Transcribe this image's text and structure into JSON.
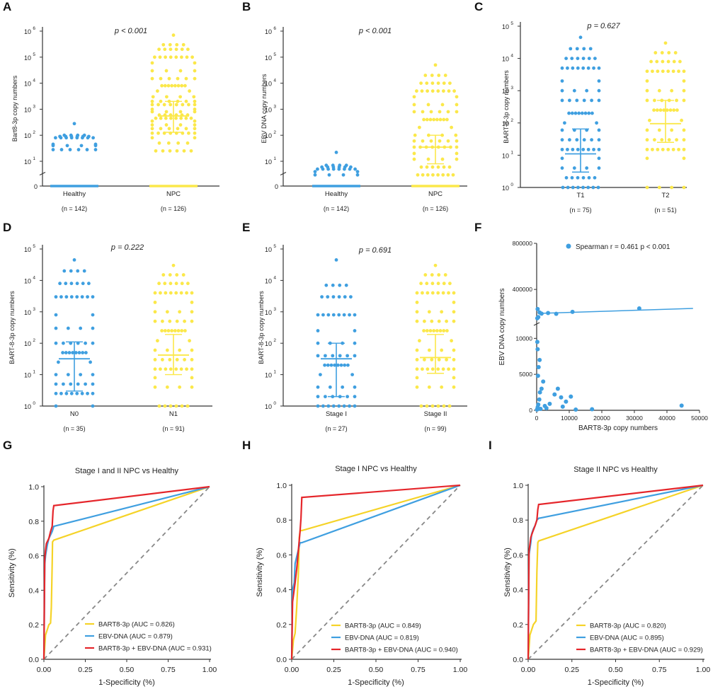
{
  "colors": {
    "blue": "#3f9fe0",
    "yellow": "#fbe84a",
    "red": "#e5262b",
    "roc_yellow": "#f5d328",
    "diag": "#888888",
    "axis": "#333333"
  },
  "chart_data": [
    {
      "panel": "A",
      "type": "scatter",
      "scale": "log",
      "ylabel": "Bart8-3p copy numbers",
      "ytick_exps": [
        1,
        2,
        3,
        4,
        5,
        6
      ],
      "ymax_exp": 6,
      "ymin_exp": 1,
      "zero_label": "0",
      "has_zero": true,
      "p_text": "p < 0.001",
      "groups": [
        {
          "name": "Healthy",
          "n": "(n = 142)",
          "color": "blue",
          "median": null,
          "q1": null,
          "q3": null,
          "values": [
            280,
            100,
            90,
            80,
            45,
            40,
            28,
            0
          ],
          "zero_count": 46
        },
        {
          "name": "NPC",
          "n": "(n = 126)",
          "color": "yellow",
          "median": 550,
          "q1": 130,
          "q3": 2000,
          "values": [
            700000,
            300000,
            200000,
            100000,
            60000,
            30000,
            15000,
            8000,
            5000,
            3000,
            2000,
            1500,
            1000,
            800,
            600,
            450,
            350,
            250,
            180,
            120,
            80,
            50,
            25
          ],
          "zero_count": 40
        }
      ]
    },
    {
      "panel": "B",
      "type": "scatter",
      "scale": "log",
      "ylabel": "EBV DNA copy numbers",
      "ytick_exps": [
        1,
        2,
        3,
        4,
        5,
        6
      ],
      "ymax_exp": 6,
      "ymin_exp": 1,
      "zero_label": "0",
      "has_zero": true,
      "p_text": "p < 0.001",
      "groups": [
        {
          "name": "Healthy",
          "n": "(n = 142)",
          "color": "blue",
          "median": null,
          "q1": null,
          "q3": null,
          "values": [
            22,
            7,
            6,
            5,
            4,
            3
          ],
          "zero_count": 46
        },
        {
          "name": "NPC",
          "n": "(n = 126)",
          "color": "yellow",
          "median": 35,
          "q1": 8,
          "q3": 100,
          "values": [
            50000,
            20000,
            10000,
            5000,
            3000,
            1500,
            800,
            400,
            200,
            100,
            60,
            35,
            20,
            12,
            6,
            3
          ],
          "zero_count": 40
        }
      ]
    },
    {
      "panel": "C",
      "type": "scatter",
      "scale": "log",
      "ylabel": "BART-8-3p copy numbers",
      "ytick_exps": [
        0,
        1,
        2,
        3,
        4,
        5
      ],
      "ymax_exp": 5,
      "ymin_exp": 0,
      "has_zero": false,
      "p_text": "p = 0.627",
      "groups": [
        {
          "name": "T1",
          "n": "(n = 75)",
          "color": "blue",
          "median": 11,
          "q1": 3,
          "q3": 65,
          "values": [
            45000,
            20000,
            10000,
            5000,
            2000,
            1000,
            500,
            200,
            100,
            60,
            30,
            15,
            8,
            4,
            2,
            1
          ],
          "zero_count": 0
        },
        {
          "name": "T2",
          "n": "(n = 51)",
          "color": "yellow",
          "median": 95,
          "q1": 25,
          "q3": 500,
          "values": [
            30000,
            15000,
            8000,
            4000,
            2000,
            1000,
            500,
            250,
            120,
            60,
            30,
            15,
            8,
            1
          ],
          "zero_count": 0
        }
      ]
    },
    {
      "panel": "D",
      "type": "scatter",
      "scale": "log",
      "ylabel": "BART-8-3p copy numbers",
      "ytick_exps": [
        0,
        1,
        2,
        3,
        4,
        5
      ],
      "ymax_exp": 5,
      "ymin_exp": 0,
      "has_zero": false,
      "p_text": "p = 0.222",
      "groups": [
        {
          "name": "N0",
          "n": "(n = 35)",
          "color": "blue",
          "median": 32,
          "q1": 3,
          "q3": 110,
          "values": [
            45000,
            20000,
            8000,
            3000,
            800,
            300,
            100,
            50,
            25,
            10,
            5,
            2.5,
            1
          ],
          "zero_count": 0
        },
        {
          "name": "N1",
          "n": "(n = 91)",
          "color": "yellow",
          "median": 42,
          "q1": 10,
          "q3": 190,
          "values": [
            30000,
            15000,
            8000,
            4000,
            2000,
            1000,
            500,
            250,
            120,
            60,
            30,
            15,
            8,
            4,
            1
          ],
          "zero_count": 0
        }
      ]
    },
    {
      "panel": "E",
      "type": "scatter",
      "scale": "log",
      "ylabel": "BART-8-3p copy numbers",
      "ytick_exps": [
        0,
        1,
        2,
        3,
        4,
        5
      ],
      "ymax_exp": 5,
      "ymin_exp": 0,
      "has_zero": false,
      "p_text": "p = 0.691",
      "groups": [
        {
          "name": "Stage I",
          "n": "(n = 27)",
          "color": "blue",
          "median": 32,
          "q1": 2,
          "q3": 100,
          "values": [
            45000,
            7000,
            3000,
            800,
            250,
            100,
            40,
            20,
            10,
            4,
            2,
            1
          ],
          "zero_count": 0
        },
        {
          "name": "Stage II",
          "n": "(n = 99)",
          "color": "yellow",
          "median": 35,
          "q1": 11,
          "q3": 190,
          "values": [
            30000,
            15000,
            8000,
            4000,
            2000,
            1000,
            500,
            250,
            120,
            60,
            30,
            15,
            8,
            4,
            1
          ],
          "zero_count": 0
        }
      ]
    },
    {
      "panel": "F",
      "type": "scatter",
      "xlabel": "BART8-3p  copy numbers",
      "ylabel": "EBV DNA  copy numbers",
      "legend": "Spearman  r = 0.461   p < 0.001",
      "xticks": [
        0,
        10000,
        20000,
        30000,
        40000,
        50000
      ],
      "xlim": [
        0,
        50000
      ],
      "yticks_upper": [
        400000,
        800000
      ],
      "yticks_lower": [
        0,
        5000,
        10000
      ],
      "break_y": 12000,
      "upper_min": 100000,
      "upper_max": 800000,
      "points_upper": [
        [
          300,
          230000
        ],
        [
          900,
          200000
        ],
        [
          1500,
          190000
        ],
        [
          3500,
          195000
        ],
        [
          6000,
          188000
        ],
        [
          11000,
          205000
        ],
        [
          31500,
          235000
        ],
        [
          500,
          160000
        ],
        [
          200,
          150000
        ]
      ],
      "points_lower": [
        [
          100,
          100
        ],
        [
          300,
          400
        ],
        [
          500,
          800
        ],
        [
          800,
          1500
        ],
        [
          1000,
          2500
        ],
        [
          1500,
          3000
        ],
        [
          2000,
          4000
        ],
        [
          400,
          4800
        ],
        [
          600,
          6000
        ],
        [
          900,
          7000
        ],
        [
          300,
          8500
        ],
        [
          200,
          9500
        ],
        [
          2500,
          600
        ],
        [
          4000,
          900
        ],
        [
          5500,
          2200
        ],
        [
          6500,
          3000
        ],
        [
          7500,
          1800
        ],
        [
          9000,
          1200
        ],
        [
          10500,
          1900
        ],
        [
          8000,
          500
        ],
        [
          12000,
          100
        ],
        [
          17000,
          150
        ],
        [
          44500,
          650
        ],
        [
          1200,
          200
        ],
        [
          3000,
          300
        ]
      ],
      "fit_line": [
        [
          500,
          192000
        ],
        [
          48000,
          235000
        ]
      ]
    },
    {
      "panel": "G",
      "type": "line",
      "title": "Stage I and II NPC vs Healthy",
      "xlabel": "1-Specificity (%)",
      "ylabel": "Sensitivity (%)",
      "xticks": [
        0,
        0.25,
        0.5,
        0.75,
        1.0
      ],
      "yticks": [
        0,
        0.2,
        0.4,
        0.6,
        0.8,
        1.0
      ],
      "series": [
        {
          "name": "BART8-3p (AUC = 0.826)",
          "color": "roc_yellow",
          "points": [
            [
              0,
              0
            ],
            [
              0.01,
              0.14
            ],
            [
              0.03,
              0.2
            ],
            [
              0.04,
              0.21
            ],
            [
              0.045,
              0.3
            ],
            [
              0.05,
              0.55
            ],
            [
              0.052,
              0.68
            ],
            [
              0.06,
              0.69
            ],
            [
              1,
              1
            ]
          ]
        },
        {
          "name": "EBV-DNA (AUC = 0.879)",
          "color": "blue",
          "points": [
            [
              0,
              0
            ],
            [
              0.005,
              0.55
            ],
            [
              0.01,
              0.6
            ],
            [
              0.02,
              0.66
            ],
            [
              0.03,
              0.7
            ],
            [
              0.05,
              0.74
            ],
            [
              0.06,
              0.77
            ],
            [
              1,
              1
            ]
          ]
        },
        {
          "name": "BART8-3p + EBV-DNA (AUC = 0.931)",
          "color": "red",
          "points": [
            [
              0,
              0
            ],
            [
              0.005,
              0.58
            ],
            [
              0.01,
              0.63
            ],
            [
              0.015,
              0.67
            ],
            [
              0.03,
              0.7
            ],
            [
              0.04,
              0.74
            ],
            [
              0.05,
              0.77
            ],
            [
              0.055,
              0.86
            ],
            [
              0.06,
              0.89
            ],
            [
              1,
              1
            ]
          ]
        }
      ]
    },
    {
      "panel": "H",
      "type": "line",
      "title": "Stage I NPC vs Healthy",
      "xlabel": "1-Specificity (%)",
      "ylabel": "Sensitivity (%)",
      "xticks": [
        0,
        0.25,
        0.5,
        0.75,
        1.0
      ],
      "yticks": [
        0,
        0.2,
        0.4,
        0.6,
        0.8,
        1.0
      ],
      "series": [
        {
          "name": "BART8-3p (AUC = 0.849)",
          "color": "roc_yellow",
          "points": [
            [
              0,
              0
            ],
            [
              0.01,
              0.11
            ],
            [
              0.02,
              0.15
            ],
            [
              0.03,
              0.3
            ],
            [
              0.04,
              0.5
            ],
            [
              0.045,
              0.7
            ],
            [
              0.05,
              0.74
            ],
            [
              0.06,
              0.74
            ],
            [
              1,
              1
            ]
          ]
        },
        {
          "name": "EBV-DNA (AUC = 0.819)",
          "color": "blue",
          "points": [
            [
              0,
              0
            ],
            [
              0.005,
              0.4
            ],
            [
              0.015,
              0.44
            ],
            [
              0.02,
              0.55
            ],
            [
              0.03,
              0.59
            ],
            [
              0.04,
              0.63
            ],
            [
              0.05,
              0.67
            ],
            [
              0.06,
              0.67
            ],
            [
              1,
              1
            ]
          ]
        },
        {
          "name": "BART8-3p + EBV-DNA (AUC = 0.940)",
          "color": "red",
          "points": [
            [
              0,
              0
            ],
            [
              0.005,
              0.33
            ],
            [
              0.02,
              0.44
            ],
            [
              0.03,
              0.52
            ],
            [
              0.04,
              0.63
            ],
            [
              0.05,
              0.74
            ],
            [
              0.055,
              0.81
            ],
            [
              0.06,
              0.93
            ],
            [
              1,
              1
            ]
          ]
        }
      ]
    },
    {
      "panel": "I",
      "type": "line",
      "title": "Stage II NPC vs Healthy",
      "xlabel": "1-Specificity (%)",
      "ylabel": "Sensitivity (%)",
      "xticks": [
        0,
        0.25,
        0.5,
        0.75,
        1.0
      ],
      "yticks": [
        0,
        0.2,
        0.4,
        0.6,
        0.8,
        1.0
      ],
      "series": [
        {
          "name": "BART8-3p (AUC = 0.820)",
          "color": "roc_yellow",
          "points": [
            [
              0,
              0
            ],
            [
              0.01,
              0.14
            ],
            [
              0.03,
              0.2
            ],
            [
              0.045,
              0.22
            ],
            [
              0.05,
              0.5
            ],
            [
              0.055,
              0.67
            ],
            [
              0.06,
              0.68
            ],
            [
              1,
              1
            ]
          ]
        },
        {
          "name": "EBV-DNA (AUC = 0.895)",
          "color": "blue",
          "points": [
            [
              0,
              0
            ],
            [
              0.005,
              0.6
            ],
            [
              0.015,
              0.67
            ],
            [
              0.02,
              0.72
            ],
            [
              0.03,
              0.75
            ],
            [
              0.04,
              0.77
            ],
            [
              0.05,
              0.8
            ],
            [
              0.06,
              0.81
            ],
            [
              1,
              1
            ]
          ]
        },
        {
          "name": "BART8-3p + EBV-DNA (AUC = 0.929)",
          "color": "red",
          "points": [
            [
              0,
              0
            ],
            [
              0.005,
              0.62
            ],
            [
              0.015,
              0.7
            ],
            [
              0.025,
              0.73
            ],
            [
              0.04,
              0.77
            ],
            [
              0.05,
              0.8
            ],
            [
              0.055,
              0.86
            ],
            [
              0.06,
              0.89
            ],
            [
              1,
              1
            ]
          ]
        }
      ]
    }
  ]
}
